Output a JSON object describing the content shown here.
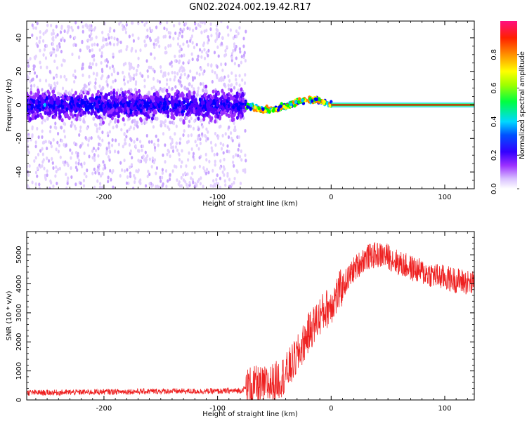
{
  "title": "GN02.2024.002.19.42.R17",
  "colors": {
    "snr_line": "#ee2020",
    "spectrogram_scale": [
      "#ffffff",
      "#d8c0ff",
      "#9b30ff",
      "#5500ff",
      "#0000ff",
      "#00c8ff",
      "#00ff00",
      "#ffff00",
      "#ff8000",
      "#ff0000",
      "#ff0080"
    ]
  },
  "chart_data": [
    {
      "type": "heatmap",
      "panel": "spectrogram",
      "xlabel": "Height of straight line (km)",
      "ylabel": "Frequency (Hz)",
      "xlim": [
        -268,
        126
      ],
      "ylim": [
        -50,
        50
      ],
      "xticks": [
        -200,
        -100,
        0,
        100
      ],
      "yticks": [
        -40,
        -20,
        0,
        20,
        40
      ],
      "grid": false,
      "colorbar": {
        "label": "Normalized spectral amplitude",
        "range": [
          0.0,
          1.0
        ],
        "ticks": [
          "0.0",
          "0.2",
          "0.4",
          "0.6",
          "0.8"
        ],
        "tick_values": [
          0.0,
          0.2,
          0.4,
          0.6,
          0.8
        ]
      },
      "description_of_structure": {
        "noise_band_x": [
          -268,
          -75
        ],
        "noise_band_center_hz": 0,
        "noise_band_halfwidth_hz": 8,
        "transition_x": [
          -75,
          0
        ],
        "carrier_x": [
          0,
          126
        ],
        "carrier_hz": 0
      }
    },
    {
      "type": "line",
      "panel": "snr",
      "xlabel": "Height of straight line (km)",
      "ylabel": "SNR (10 * v/v)",
      "xlim": [
        -268,
        126
      ],
      "ylim": [
        0,
        5800
      ],
      "xticks": [
        -200,
        -100,
        0,
        100
      ],
      "yticks": [
        0,
        1000,
        2000,
        3000,
        4000,
        5000
      ],
      "grid": false,
      "series": [
        {
          "x": [
            -268,
            -250,
            -200,
            -150,
            -100,
            -80,
            -70,
            -60,
            -50,
            -40,
            -30,
            -20,
            -10,
            0,
            10,
            20,
            30,
            40,
            50,
            60,
            80,
            100,
            126
          ],
          "values": [
            250,
            250,
            280,
            300,
            300,
            320,
            500,
            450,
            600,
            900,
            1500,
            2300,
            2900,
            3300,
            3900,
            4500,
            4900,
            5000,
            4950,
            4700,
            4400,
            4200,
            4000
          ]
        }
      ]
    }
  ]
}
